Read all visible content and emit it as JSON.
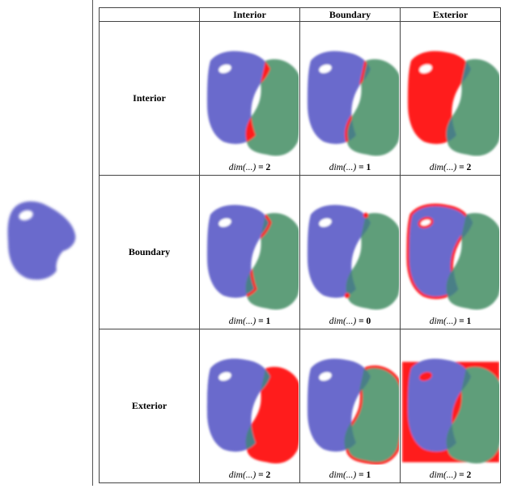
{
  "columns": [
    "Interior",
    "Boundary",
    "Exterior"
  ],
  "rows": [
    {
      "label": "Interior",
      "cells": [
        {
          "highlight": "int-int",
          "dim_label": "dim(...)",
          "dim_value": "= 2"
        },
        {
          "highlight": "int-bnd",
          "dim_label": "dim(...)",
          "dim_value": "= 1"
        },
        {
          "highlight": "int-ext",
          "dim_label": "dim(...)",
          "dim_value": "= 2"
        }
      ]
    },
    {
      "label": "Boundary",
      "cells": [
        {
          "highlight": "bnd-int",
          "dim_label": "dim(...)",
          "dim_value": "= 1"
        },
        {
          "highlight": "bnd-bnd",
          "dim_label": "dim(...)",
          "dim_value": "= 0"
        },
        {
          "highlight": "bnd-ext",
          "dim_label": "dim(...)",
          "dim_value": "= 1"
        }
      ]
    },
    {
      "label": "Exterior",
      "cells": [
        {
          "highlight": "ext-int",
          "dim_label": "dim(...)",
          "dim_value": "= 2"
        },
        {
          "highlight": "ext-bnd",
          "dim_label": "dim(...)",
          "dim_value": "= 1"
        },
        {
          "highlight": "ext-ext",
          "dim_label": "dim(...)",
          "dim_value": "= 2"
        }
      ]
    }
  ],
  "colors": {
    "shape_a": "#6b6bcc",
    "shape_b": "#5f9e7a",
    "overlap": "#4a7f87",
    "highlight": "#ff1a1a",
    "hole": "#ffffff"
  }
}
